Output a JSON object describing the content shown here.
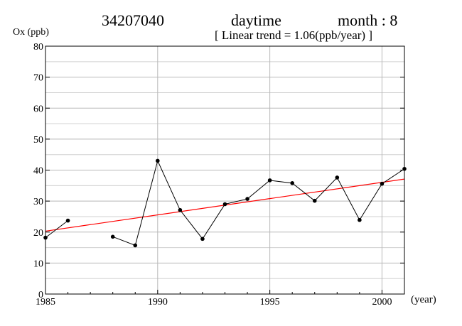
{
  "header": {
    "station": "34207040",
    "period": "daytime",
    "month": "month : 8",
    "trend": "[ Linear trend = 1.06(ppb/year) ]"
  },
  "chart_data": {
    "type": "line",
    "title": "",
    "ylabel": "Ox (ppb)",
    "xlabel": "(year)",
    "xlim": [
      1985,
      2001
    ],
    "ylim": [
      0,
      80
    ],
    "x_ticks": [
      1985,
      1990,
      1995,
      2000
    ],
    "y_ticks": [
      0,
      10,
      20,
      30,
      40,
      50,
      60,
      70,
      80
    ],
    "grid": true,
    "line_color": "#000000",
    "trend_color": "#ff0000",
    "series": [
      {
        "x": [
          1985,
          1986,
          1987,
          1988,
          1989,
          1990,
          1991,
          1992,
          1993,
          1994,
          1995,
          1996,
          1997,
          1998,
          1999,
          2000,
          2001
        ],
        "values": [
          18.2,
          23.7,
          null,
          18.5,
          15.7,
          43.0,
          27.1,
          17.8,
          29.0,
          30.7,
          36.7,
          35.8,
          30.1,
          37.6,
          23.9,
          35.6,
          40.4
        ]
      }
    ],
    "trend_line": {
      "slope": 1.06,
      "x": [
        1985,
        2001
      ],
      "values": [
        20.3,
        37.1
      ]
    }
  }
}
